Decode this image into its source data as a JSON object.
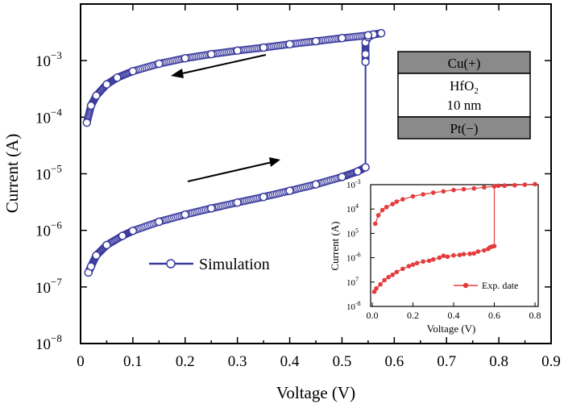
{
  "chart_data": [
    {
      "type": "scatter",
      "xlabel": "Voltage (V)",
      "ylabel": "Current (A)",
      "xlim": [
        0,
        0.9
      ],
      "ylim": [
        1e-08,
        0.01
      ],
      "yscale": "log",
      "x_ticks": [
        "0",
        "0.1",
        "0.2",
        "0.3",
        "0.4",
        "0.5",
        "0.6",
        "0.7",
        "0.8",
        "0.9"
      ],
      "y_ticks": [
        {
          "base": "10",
          "exp": "−8"
        },
        {
          "base": "10",
          "exp": "−7"
        },
        {
          "base": "10",
          "exp": "−6"
        },
        {
          "base": "10",
          "exp": "−5"
        },
        {
          "base": "10",
          "exp": "−4"
        },
        {
          "base": "10",
          "exp": "−3"
        }
      ],
      "legend": {
        "label": "Simulation",
        "placement": "center"
      },
      "color": "#3a3a9e",
      "series": [
        {
          "name": "Simulation",
          "x": [
            0.015,
            0.02,
            0.03,
            0.05,
            0.08,
            0.1,
            0.15,
            0.2,
            0.25,
            0.3,
            0.35,
            0.4,
            0.45,
            0.5,
            0.53,
            0.545
          ],
          "y": [
            1.8e-07,
            2.3e-07,
            3.6e-07,
            5.5e-07,
            8e-07,
            9.8e-07,
            1.42e-06,
            1.9e-06,
            2.45e-06,
            3.1e-06,
            3.9e-06,
            5e-06,
            6.5e-06,
            8.8e-06,
            1.1e-05,
            1.3e-05
          ]
        },
        {
          "name": "Simulation",
          "x": [
            0.545,
            0.545,
            0.545,
            0.55,
            0.56,
            0.575,
            0.55,
            0.5,
            0.45,
            0.4,
            0.35,
            0.3,
            0.25,
            0.2,
            0.15,
            0.1,
            0.07,
            0.05,
            0.03,
            0.02,
            0.012
          ],
          "y": [
            0.00095,
            0.0013,
            0.0021,
            0.0026,
            0.0029,
            0.00305,
            0.0028,
            0.0025,
            0.0022,
            0.00195,
            0.0017,
            0.0015,
            0.0013,
            0.0011,
            0.00088,
            0.00065,
            0.0005,
            0.00038,
            0.00024,
            0.00016,
            8e-05
          ]
        }
      ],
      "device_stack": [
        "Cu(+)",
        "HfO",
        "2",
        "10 nm",
        "Pt(−)"
      ]
    },
    {
      "type": "line",
      "xlabel": "Voltage (V)",
      "ylabel": "Current (A)",
      "xlim": [
        0,
        0.8
      ],
      "ylim": [
        1e-08,
        0.001
      ],
      "yscale": "log",
      "x_ticks": [
        "0.0",
        "0.2",
        "0.4",
        "0.6",
        "0.8"
      ],
      "y_ticks": [
        {
          "base": "10",
          "exp": "-8"
        },
        {
          "base": "10",
          "exp": "7"
        },
        {
          "base": "10",
          "exp": "-6"
        },
        {
          "base": "10",
          "exp": "5"
        },
        {
          "base": "10",
          "exp": "4"
        },
        {
          "base": "10",
          "exp": "-3"
        }
      ],
      "legend": {
        "label": "Exp. date",
        "placement": "bottom-right"
      },
      "color": "#e43c3c",
      "series": [
        {
          "name": "Exp. date",
          "x": [
            0.01,
            0.02,
            0.04,
            0.06,
            0.08,
            0.1,
            0.12,
            0.15,
            0.18,
            0.2,
            0.22,
            0.25,
            0.28,
            0.3,
            0.33,
            0.35,
            0.37,
            0.4,
            0.43,
            0.45,
            0.48,
            0.5,
            0.52,
            0.55,
            0.57,
            0.58,
            0.59,
            0.6
          ],
          "y": [
            4e-08,
            5.5e-08,
            8e-08,
            1.2e-07,
            1.6e-07,
            2e-07,
            2.6e-07,
            3.5e-07,
            4.5e-07,
            5.2e-07,
            6e-07,
            7e-07,
            7.5e-07,
            8.5e-07,
            1e-06,
            1.2e-06,
            1.1e-06,
            1.25e-06,
            1.3e-06,
            1.4e-06,
            1.45e-06,
            1.5e-06,
            1.8e-06,
            2e-06,
            2.3e-06,
            2.7e-06,
            2.9e-06,
            3e-06
          ]
        },
        {
          "name": "Exp. date",
          "x": [
            0.6,
            0.62,
            0.65,
            0.7,
            0.75,
            0.8,
            0.75,
            0.7,
            0.65,
            0.6,
            0.55,
            0.5,
            0.45,
            0.4,
            0.35,
            0.3,
            0.25,
            0.2,
            0.15,
            0.12,
            0.1,
            0.07,
            0.05,
            0.03,
            0.015
          ],
          "y": [
            0.00085,
            0.0009,
            0.00092,
            0.00095,
            0.001,
            0.00105,
            0.001,
            0.00095,
            0.0009,
            0.00085,
            0.00078,
            0.0007,
            0.00065,
            0.0006,
            0.00053,
            0.00047,
            0.0004,
            0.00033,
            0.00025,
            0.0002,
            0.00016,
            0.00012,
            9e-05,
            5.5e-05,
            2.5e-05
          ]
        }
      ]
    }
  ]
}
